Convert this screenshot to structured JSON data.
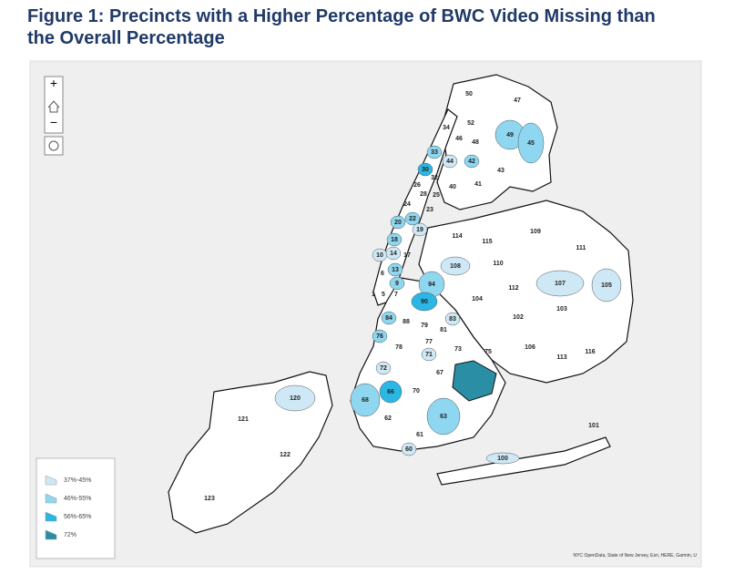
{
  "title": "Figure 1: Precincts with a Higher Percentage of BWC Video Missing than the Overall Percentage",
  "legend": [
    {
      "label": "37%-45%",
      "color": "#cfe8f5"
    },
    {
      "label": "46%-55%",
      "color": "#8fd6f0"
    },
    {
      "label": "56%-65%",
      "color": "#2bb6e3"
    },
    {
      "label": "72%",
      "color": "#2a8fa5"
    }
  ],
  "attribution": "NYC OpenData, State of New Jersey, Esri, HERE, Garmin, U",
  "precincts": [
    {
      "label": "50"
    },
    {
      "label": "47"
    },
    {
      "label": "52"
    },
    {
      "label": "34"
    },
    {
      "label": "46"
    },
    {
      "label": "48"
    },
    {
      "label": "49",
      "color": "#8fd6f0"
    },
    {
      "label": "45",
      "color": "#8fd6f0"
    },
    {
      "label": "33",
      "color": "#8fd6f0"
    },
    {
      "label": "44",
      "color": "#cfe8f5"
    },
    {
      "label": "42",
      "color": "#8fd6f0"
    },
    {
      "label": "43"
    },
    {
      "label": "30",
      "color": "#2bb6e3"
    },
    {
      "label": "32"
    },
    {
      "label": "40"
    },
    {
      "label": "41"
    },
    {
      "label": "26"
    },
    {
      "label": "28"
    },
    {
      "label": "25"
    },
    {
      "label": "24"
    },
    {
      "label": "23"
    },
    {
      "label": "20",
      "color": "#8fd6f0"
    },
    {
      "label": "22",
      "color": "#8fd6f0"
    },
    {
      "label": "19",
      "color": "#cfe8f5"
    },
    {
      "label": "114"
    },
    {
      "label": "115"
    },
    {
      "label": "109"
    },
    {
      "label": "111"
    },
    {
      "label": "18",
      "color": "#8fd6f0"
    },
    {
      "label": "10",
      "color": "#cfe8f5"
    },
    {
      "label": "14",
      "color": "#cfe8f5"
    },
    {
      "label": "17"
    },
    {
      "label": "108",
      "color": "#cfe8f5"
    },
    {
      "label": "110"
    },
    {
      "label": "107",
      "color": "#cfe8f5"
    },
    {
      "label": "105",
      "color": "#cfe8f5"
    },
    {
      "label": "6"
    },
    {
      "label": "13",
      "color": "#8fd6f0"
    },
    {
      "label": "94",
      "color": "#8fd6f0"
    },
    {
      "label": "9",
      "color": "#8fd6f0"
    },
    {
      "label": "112"
    },
    {
      "label": "1"
    },
    {
      "label": "5"
    },
    {
      "label": "7"
    },
    {
      "label": "90",
      "color": "#2bb6e3"
    },
    {
      "label": "104"
    },
    {
      "label": "103"
    },
    {
      "label": "102"
    },
    {
      "label": "84",
      "color": "#8fd6f0"
    },
    {
      "label": "88"
    },
    {
      "label": "79"
    },
    {
      "label": "83",
      "color": "#cfe8f5"
    },
    {
      "label": "81"
    },
    {
      "label": "76",
      "color": "#8fd6f0"
    },
    {
      "label": "77"
    },
    {
      "label": "78"
    },
    {
      "label": "73"
    },
    {
      "label": "75"
    },
    {
      "label": "106"
    },
    {
      "label": "113"
    },
    {
      "label": "116"
    },
    {
      "label": "71",
      "color": "#cfe8f5"
    },
    {
      "label": "72",
      "color": "#cfe8f5"
    },
    {
      "label": "67"
    },
    {
      "label": "68",
      "color": "#8fd6f0"
    },
    {
      "label": "66",
      "color": "#2bb6e3"
    },
    {
      "label": "70"
    },
    {
      "label": "120",
      "color": "#cfe8f5"
    },
    {
      "label": "121"
    },
    {
      "label": "62"
    },
    {
      "label": "63",
      "color": "#8fd6f0"
    },
    {
      "label": "101"
    },
    {
      "label": "61"
    },
    {
      "label": "60",
      "color": "#cfe8f5"
    },
    {
      "label": "122"
    },
    {
      "label": "100",
      "color": "#cfe8f5"
    },
    {
      "label": "123"
    }
  ]
}
